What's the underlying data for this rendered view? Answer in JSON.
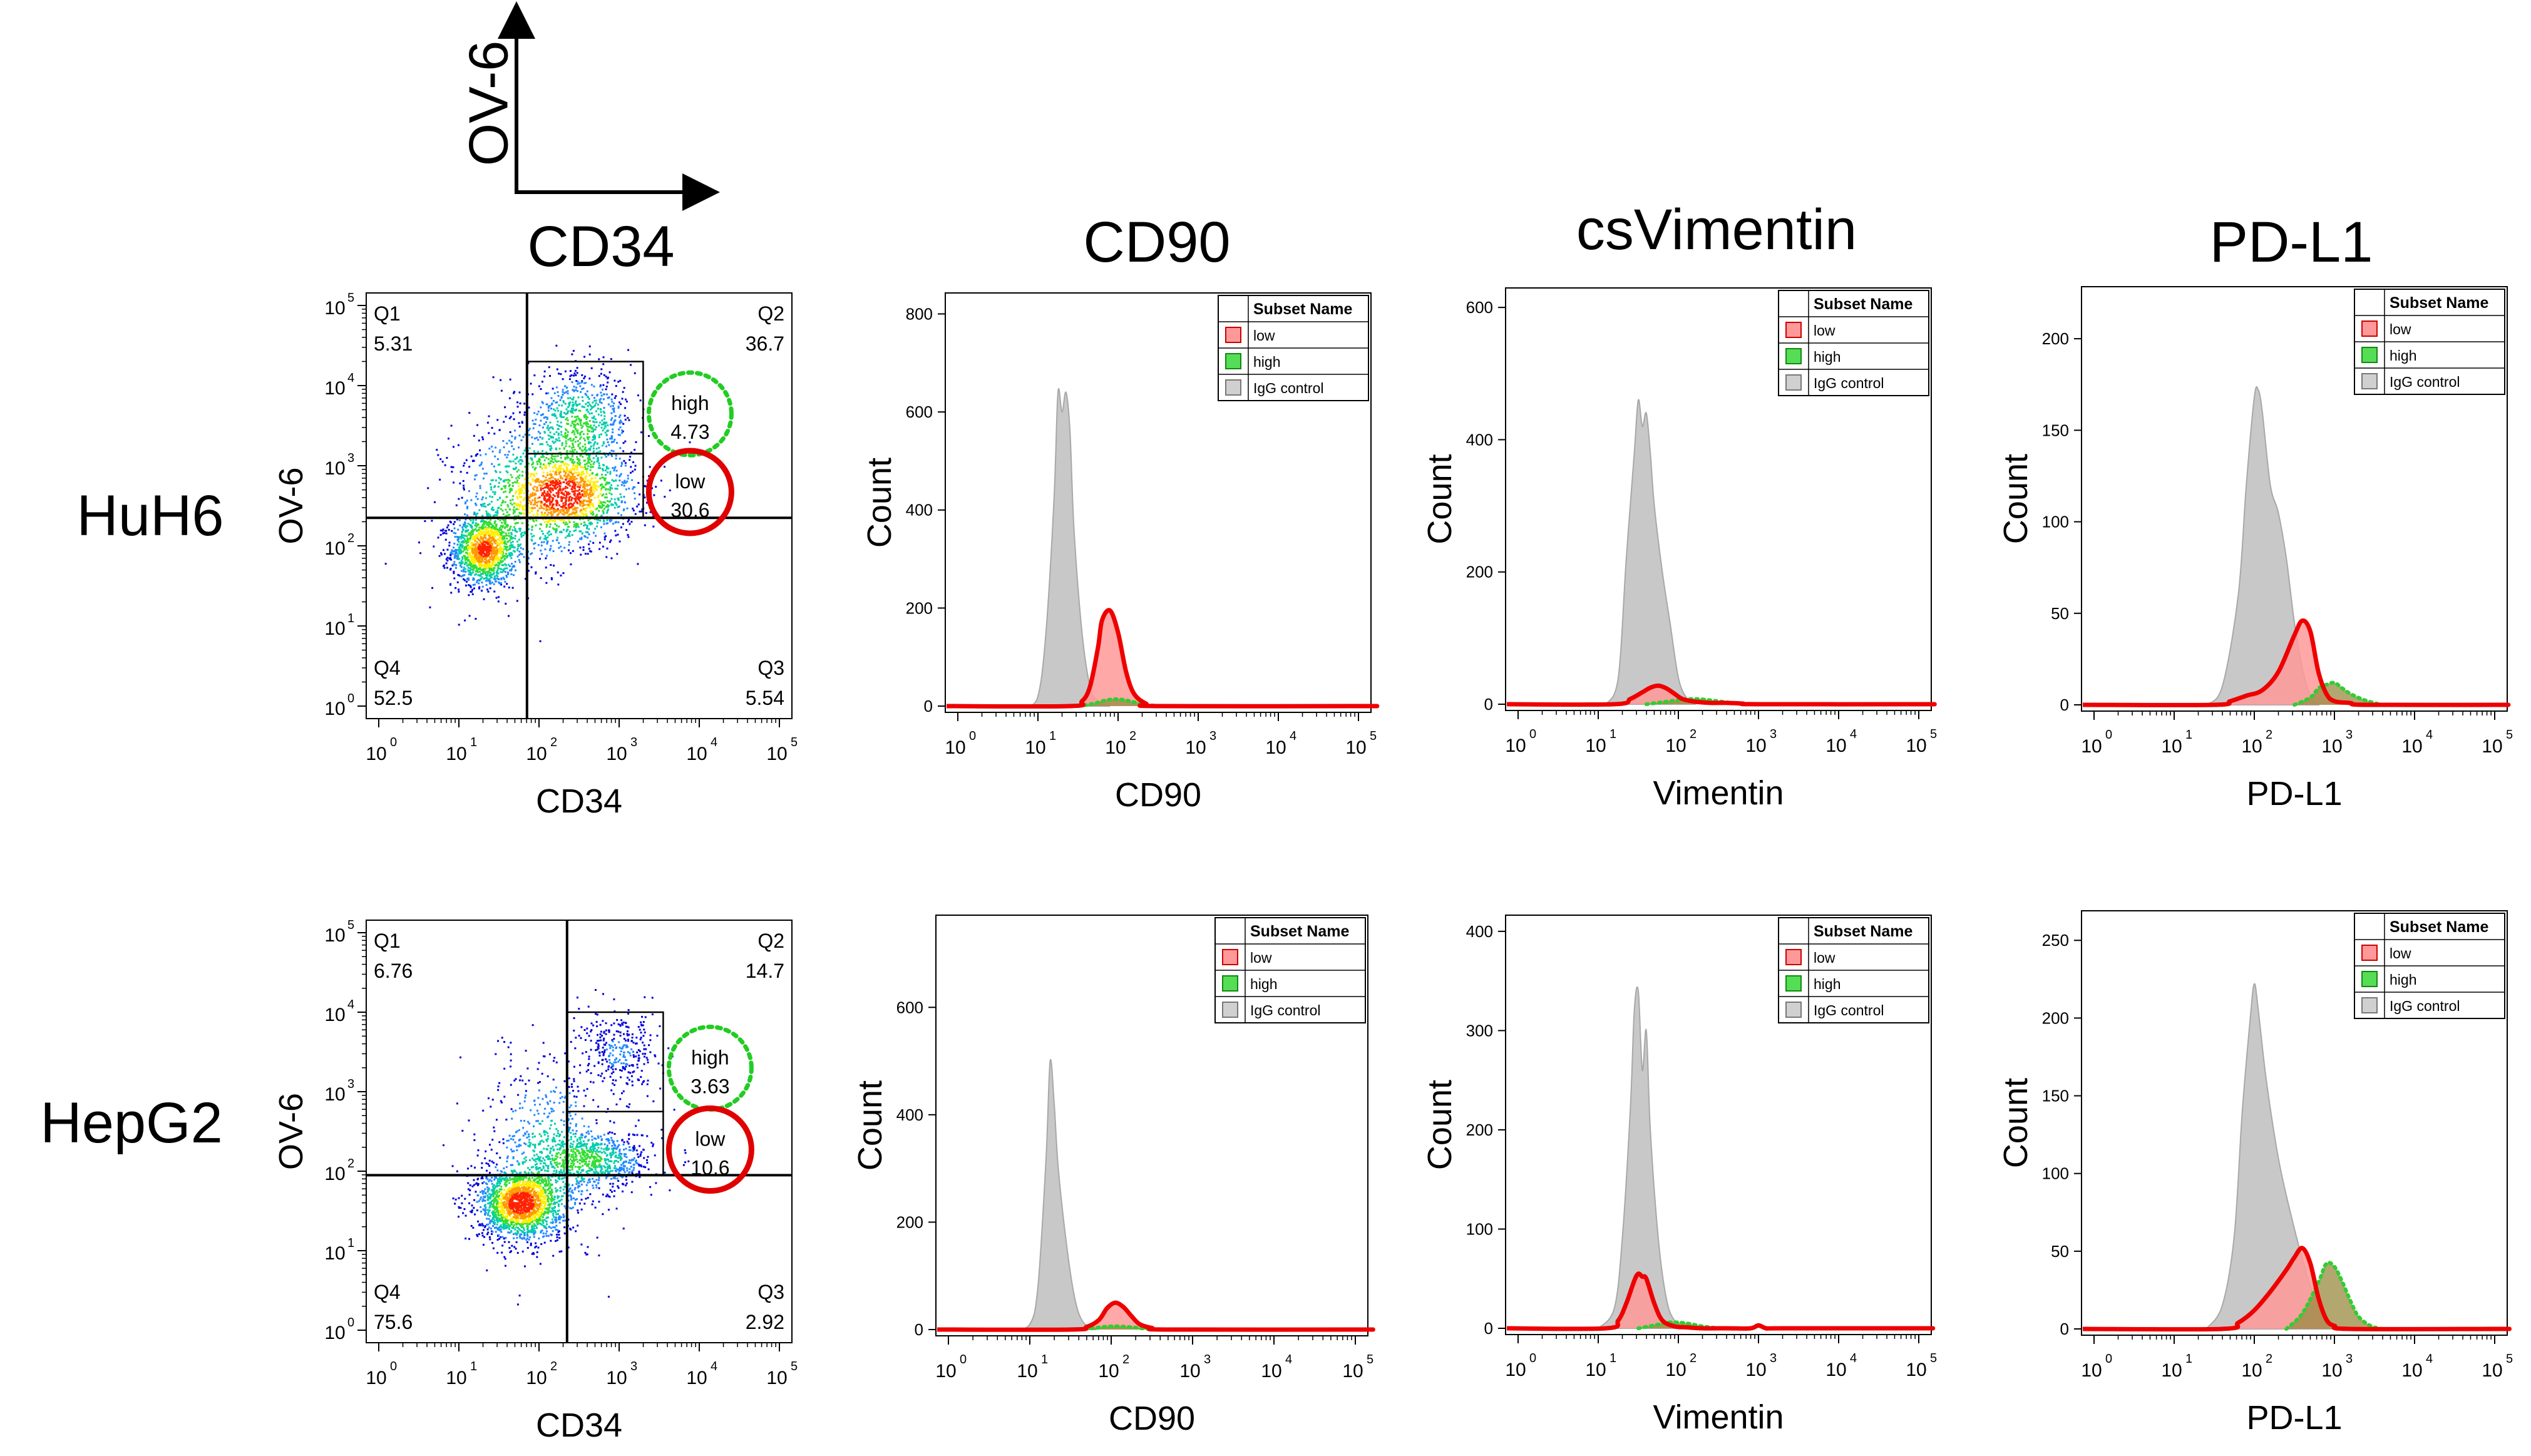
{
  "legend_axes": {
    "y": "OV-6",
    "x": "CD34"
  },
  "column_titles": [
    "CD34",
    "CD90",
    "csVimentin",
    "PD-L1"
  ],
  "row_labels": [
    "HuH6",
    "HepG2"
  ],
  "legend_header": "Subset Name",
  "legend_items": [
    "low",
    "high",
    "IgG control"
  ],
  "colors": {
    "low": "#ff9999",
    "low_line": "#ee0000",
    "high": "#33cc33",
    "igg": "#c8c8c8",
    "dots": "#0000cc"
  },
  "chart_data": [
    {
      "type": "scatter",
      "id": "huh6-cd34",
      "xlabel": "CD34",
      "ylabel": "OV-6",
      "xticks": [
        "10",
        "10",
        "10",
        "10",
        "10",
        "10"
      ],
      "yticks": [
        "10",
        "10",
        "10",
        "10",
        "10",
        "10"
      ],
      "exponents": [
        "0",
        "1",
        "2",
        "3",
        "4",
        "5"
      ],
      "xlim": [
        0,
        5
      ],
      "ylim": [
        0,
        5
      ],
      "quadrants": {
        "x_split": 1.85,
        "y_split": 2.35,
        "Q1": {
          "label": "Q1",
          "value": "5.31"
        },
        "Q2": {
          "label": "Q2",
          "value": "36.7"
        },
        "Q3": {
          "label": "Q3",
          "value": "5.54"
        },
        "Q4": {
          "label": "Q4",
          "value": "52.5"
        }
      },
      "gates": {
        "high": {
          "label": "high",
          "value": "4.73",
          "x": [
            1.85,
            3.3
          ],
          "y": [
            3.15,
            4.3
          ]
        },
        "low": {
          "label": "low",
          "value": "30.6",
          "x": [
            1.85,
            3.3
          ],
          "y": [
            2.35,
            3.15
          ]
        }
      },
      "populations": [
        {
          "cx": 1.3,
          "cy": 1.95,
          "sx": 0.2,
          "sy": 0.22,
          "n": 1300
        },
        {
          "cx": 2.35,
          "cy": 2.65,
          "sx": 0.42,
          "sy": 0.3,
          "n": 1400
        },
        {
          "cx": 2.5,
          "cy": 3.55,
          "sx": 0.33,
          "sy": 0.32,
          "n": 700
        },
        {
          "cx": 1.7,
          "cy": 2.6,
          "sx": 0.45,
          "sy": 0.55,
          "n": 500
        }
      ]
    },
    {
      "type": "area",
      "id": "huh6-cd90",
      "xlabel": "CD90",
      "ylabel": "Count",
      "ylim": [
        0,
        830
      ],
      "yticks": [
        0,
        200,
        400,
        600,
        800
      ],
      "xlim": [
        0,
        5
      ],
      "exponents": [
        "0",
        "1",
        "2",
        "3",
        "4",
        "5"
      ],
      "series": [
        {
          "name": "IgG control",
          "x": [
            0.85,
            1.0,
            1.1,
            1.2,
            1.25,
            1.3,
            1.35,
            1.4,
            1.45,
            1.55,
            1.65,
            1.75,
            1.9
          ],
          "y": [
            0,
            20,
            150,
            420,
            640,
            600,
            640,
            560,
            360,
            150,
            40,
            10,
            0
          ]
        },
        {
          "name": "low",
          "x": [
            1.4,
            1.55,
            1.65,
            1.75,
            1.8,
            1.9,
            2.0,
            2.1,
            2.2,
            2.35,
            2.5,
            5.0
          ],
          "y": [
            0,
            10,
            40,
            120,
            175,
            195,
            150,
            70,
            25,
            5,
            0,
            0
          ]
        },
        {
          "name": "high",
          "x": [
            1.5,
            1.7,
            1.85,
            2.0,
            2.15,
            2.3,
            2.5
          ],
          "y": [
            0,
            5,
            12,
            14,
            10,
            4,
            0
          ]
        }
      ]
    },
    {
      "type": "area",
      "id": "huh6-vimentin",
      "xlabel": "Vimentin",
      "ylabel": "Count",
      "ylim": [
        0,
        620
      ],
      "yticks": [
        0,
        200,
        400,
        600
      ],
      "xlim": [
        0,
        5
      ],
      "exponents": [
        "0",
        "1",
        "2",
        "3",
        "4",
        "5"
      ],
      "series": [
        {
          "name": "IgG control",
          "x": [
            1.1,
            1.25,
            1.35,
            1.45,
            1.5,
            1.55,
            1.6,
            1.65,
            1.7,
            1.8,
            1.9,
            2.0,
            2.1,
            2.2
          ],
          "y": [
            0,
            40,
            220,
            380,
            460,
            420,
            440,
            380,
            300,
            200,
            120,
            40,
            10,
            0
          ]
        },
        {
          "name": "low",
          "x": [
            1.2,
            1.4,
            1.55,
            1.65,
            1.75,
            1.85,
            1.95,
            2.05,
            2.2,
            2.4,
            2.6,
            2.8,
            3.0,
            5.0
          ],
          "y": [
            0,
            8,
            18,
            25,
            28,
            24,
            16,
            8,
            4,
            2,
            2,
            1,
            0,
            0
          ]
        },
        {
          "name": "high",
          "x": [
            1.6,
            1.8,
            2.0,
            2.2,
            2.4,
            2.6,
            2.8
          ],
          "y": [
            0,
            3,
            6,
            8,
            6,
            3,
            0
          ]
        }
      ]
    },
    {
      "type": "area",
      "id": "huh6-pdl1",
      "xlabel": "PD-L1",
      "ylabel": "Count",
      "ylim": [
        0,
        225
      ],
      "yticks": [
        0,
        50,
        100,
        150,
        200
      ],
      "xlim": [
        0,
        5
      ],
      "exponents": [
        "0",
        "1",
        "2",
        "3",
        "4",
        "5"
      ],
      "series": [
        {
          "name": "IgG control",
          "x": [
            1.4,
            1.6,
            1.8,
            1.9,
            2.0,
            2.05,
            2.1,
            2.2,
            2.3,
            2.4,
            2.5,
            2.6,
            2.7,
            2.8
          ],
          "y": [
            0,
            10,
            60,
            120,
            168,
            172,
            160,
            120,
            105,
            80,
            45,
            20,
            5,
            0
          ]
        },
        {
          "name": "low",
          "x": [
            1.5,
            1.7,
            1.9,
            2.1,
            2.3,
            2.5,
            2.6,
            2.7,
            2.8,
            2.9,
            3.0,
            3.2,
            3.4,
            5.0
          ],
          "y": [
            0,
            2,
            5,
            8,
            18,
            38,
            46,
            40,
            18,
            6,
            2,
            1,
            0,
            0
          ]
        },
        {
          "name": "high",
          "x": [
            2.5,
            2.7,
            2.8,
            2.9,
            3.0,
            3.1,
            3.2,
            3.35,
            3.5,
            3.6
          ],
          "y": [
            0,
            4,
            9,
            11,
            12,
            9,
            6,
            3,
            1,
            0
          ]
        }
      ]
    },
    {
      "type": "scatter",
      "id": "hepg2-cd34",
      "xlabel": "CD34",
      "ylabel": "OV-6",
      "xticks": [
        "10",
        "10",
        "10",
        "10",
        "10",
        "10"
      ],
      "yticks": [
        "10",
        "10",
        "10",
        "10",
        "10",
        "10"
      ],
      "exponents": [
        "0",
        "1",
        "2",
        "3",
        "4",
        "5"
      ],
      "xlim": [
        0,
        5
      ],
      "ylim": [
        0,
        5
      ],
      "quadrants": {
        "x_split": 2.35,
        "y_split": 1.95,
        "Q1": {
          "label": "Q1",
          "value": "6.76"
        },
        "Q2": {
          "label": "Q2",
          "value": "14.7"
        },
        "Q3": {
          "label": "Q3",
          "value": "2.92"
        },
        "Q4": {
          "label": "Q4",
          "value": "75.6"
        }
      },
      "gates": {
        "high": {
          "label": "high",
          "value": "3.63",
          "x": [
            2.35,
            3.55
          ],
          "y": [
            2.75,
            4.0
          ]
        },
        "low": {
          "label": "low",
          "value": "10.6",
          "x": [
            2.35,
            3.55
          ],
          "y": [
            1.95,
            2.75
          ]
        }
      },
      "populations": [
        {
          "cx": 1.75,
          "cy": 1.6,
          "sx": 0.26,
          "sy": 0.22,
          "n": 1800
        },
        {
          "cx": 2.7,
          "cy": 2.15,
          "sx": 0.35,
          "sy": 0.18,
          "n": 700
        },
        {
          "cx": 3.0,
          "cy": 3.5,
          "sx": 0.25,
          "sy": 0.25,
          "n": 300
        },
        {
          "cx": 2.1,
          "cy": 2.3,
          "sx": 0.4,
          "sy": 0.6,
          "n": 600
        }
      ]
    },
    {
      "type": "area",
      "id": "hepg2-cd90",
      "xlabel": "CD90",
      "ylabel": "Count",
      "ylim": [
        0,
        760
      ],
      "yticks": [
        0,
        200,
        400,
        600
      ],
      "xlim": [
        0,
        5
      ],
      "exponents": [
        "0",
        "1",
        "2",
        "3",
        "4",
        "5"
      ],
      "series": [
        {
          "name": "IgG control",
          "x": [
            0.8,
            1.0,
            1.1,
            1.2,
            1.25,
            1.3,
            1.35,
            1.45,
            1.55,
            1.65,
            1.8
          ],
          "y": [
            0,
            10,
            80,
            320,
            500,
            420,
            300,
            160,
            60,
            15,
            0
          ]
        },
        {
          "name": "low",
          "x": [
            1.5,
            1.7,
            1.85,
            1.95,
            2.05,
            2.15,
            2.25,
            2.35,
            2.5,
            2.7,
            5.0
          ],
          "y": [
            0,
            5,
            18,
            40,
            50,
            42,
            25,
            10,
            3,
            0,
            0
          ]
        },
        {
          "name": "high",
          "x": [
            1.6,
            1.8,
            2.0,
            2.2,
            2.4,
            2.6
          ],
          "y": [
            0,
            3,
            6,
            5,
            2,
            0
          ]
        }
      ]
    },
    {
      "type": "area",
      "id": "hepg2-vimentin",
      "xlabel": "Vimentin",
      "ylabel": "Count",
      "ylim": [
        0,
        410
      ],
      "yticks": [
        0,
        100,
        200,
        300,
        400
      ],
      "xlim": [
        0,
        5
      ],
      "exponents": [
        "0",
        "1",
        "2",
        "3",
        "4",
        "5"
      ],
      "series": [
        {
          "name": "IgG control",
          "x": [
            1.0,
            1.2,
            1.3,
            1.4,
            1.45,
            1.5,
            1.55,
            1.6,
            1.65,
            1.75,
            1.85,
            1.95,
            2.1
          ],
          "y": [
            0,
            20,
            90,
            220,
            320,
            340,
            260,
            300,
            200,
            90,
            30,
            8,
            0
          ]
        },
        {
          "name": "low",
          "x": [
            1.1,
            1.25,
            1.35,
            1.45,
            1.5,
            1.55,
            1.6,
            1.7,
            1.8,
            1.95,
            2.1,
            2.3,
            2.6,
            2.9,
            3.0,
            3.1,
            3.3,
            5.0
          ],
          "y": [
            0,
            8,
            25,
            48,
            55,
            52,
            50,
            25,
            8,
            2,
            1,
            0,
            0,
            0,
            3,
            0,
            0,
            0
          ]
        },
        {
          "name": "high",
          "x": [
            1.5,
            1.7,
            1.9,
            2.1,
            2.3,
            2.5
          ],
          "y": [
            0,
            3,
            6,
            5,
            2,
            0
          ]
        }
      ]
    },
    {
      "type": "area",
      "id": "hepg2-pdl1",
      "xlabel": "PD-L1",
      "ylabel": "Count",
      "ylim": [
        0,
        265
      ],
      "yticks": [
        0,
        50,
        100,
        150,
        200,
        250
      ],
      "xlim": [
        0,
        5
      ],
      "exponents": [
        "0",
        "1",
        "2",
        "3",
        "4",
        "5"
      ],
      "series": [
        {
          "name": "IgG control",
          "x": [
            1.4,
            1.6,
            1.75,
            1.85,
            1.95,
            2.0,
            2.05,
            2.15,
            2.3,
            2.45,
            2.6,
            2.75,
            2.9,
            3.0
          ],
          "y": [
            0,
            15,
            60,
            140,
            200,
            222,
            205,
            160,
            110,
            75,
            45,
            20,
            5,
            0
          ]
        },
        {
          "name": "low",
          "x": [
            1.6,
            1.8,
            2.0,
            2.2,
            2.4,
            2.5,
            2.6,
            2.7,
            2.8,
            2.9,
            3.0,
            3.2,
            5.0
          ],
          "y": [
            0,
            4,
            12,
            24,
            38,
            46,
            52,
            42,
            20,
            6,
            2,
            0,
            0
          ]
        },
        {
          "name": "high",
          "x": [
            2.4,
            2.6,
            2.8,
            2.9,
            3.0,
            3.1,
            3.2,
            3.3,
            3.45,
            3.6
          ],
          "y": [
            0,
            10,
            30,
            42,
            40,
            30,
            18,
            8,
            2,
            0
          ]
        }
      ]
    }
  ]
}
